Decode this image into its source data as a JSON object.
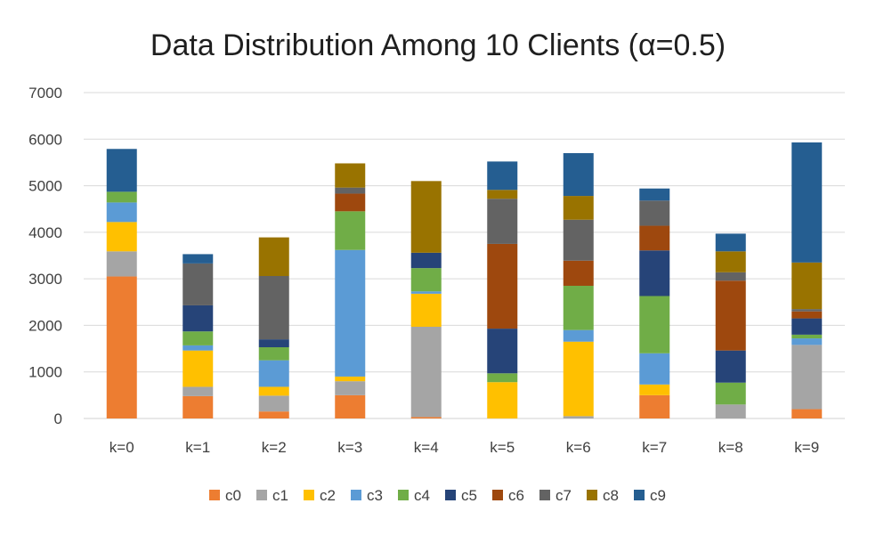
{
  "chart_data": {
    "type": "bar",
    "stacked": true,
    "title": "Data Distribution Among 10 Clients (α=0.5)",
    "xlabel": "",
    "ylabel": "",
    "ylim": [
      0,
      7000
    ],
    "yticks": [
      0,
      1000,
      2000,
      3000,
      4000,
      5000,
      6000,
      7000
    ],
    "grid": true,
    "legend_position": "bottom",
    "categories": [
      "k=0",
      "k=1",
      "k=2",
      "k=3",
      "k=4",
      "k=5",
      "k=6",
      "k=7",
      "k=8",
      "k=9"
    ],
    "series": [
      {
        "name": "c0",
        "color": "#ED7D31",
        "values": [
          3050,
          480,
          150,
          500,
          30,
          0,
          0,
          500,
          0,
          200
        ]
      },
      {
        "name": "c1",
        "color": "#A5A5A5",
        "values": [
          540,
          200,
          340,
          300,
          1940,
          0,
          50,
          0,
          300,
          1380
        ]
      },
      {
        "name": "c2",
        "color": "#FFC000",
        "values": [
          630,
          780,
          190,
          100,
          710,
          780,
          1600,
          230,
          0,
          0
        ]
      },
      {
        "name": "c3",
        "color": "#5B9BD5",
        "values": [
          420,
          110,
          570,
          2720,
          50,
          0,
          250,
          670,
          0,
          140
        ]
      },
      {
        "name": "c4",
        "color": "#70AD47",
        "values": [
          230,
          300,
          280,
          830,
          500,
          190,
          950,
          1230,
          470,
          80
        ]
      },
      {
        "name": "c5",
        "color": "#264478",
        "values": [
          0,
          560,
          170,
          0,
          330,
          960,
          0,
          980,
          690,
          350
        ]
      },
      {
        "name": "c6",
        "color": "#9E480E",
        "values": [
          0,
          0,
          0,
          380,
          0,
          1820,
          540,
          530,
          1500,
          150
        ]
      },
      {
        "name": "c7",
        "color": "#636363",
        "values": [
          0,
          900,
          1360,
          130,
          0,
          970,
          880,
          540,
          180,
          50
        ]
      },
      {
        "name": "c8",
        "color": "#997300",
        "values": [
          0,
          0,
          830,
          520,
          1540,
          190,
          510,
          0,
          450,
          1000
        ]
      },
      {
        "name": "c9",
        "color": "#255E91",
        "values": [
          920,
          200,
          0,
          0,
          0,
          610,
          920,
          260,
          380,
          2580
        ]
      }
    ]
  }
}
